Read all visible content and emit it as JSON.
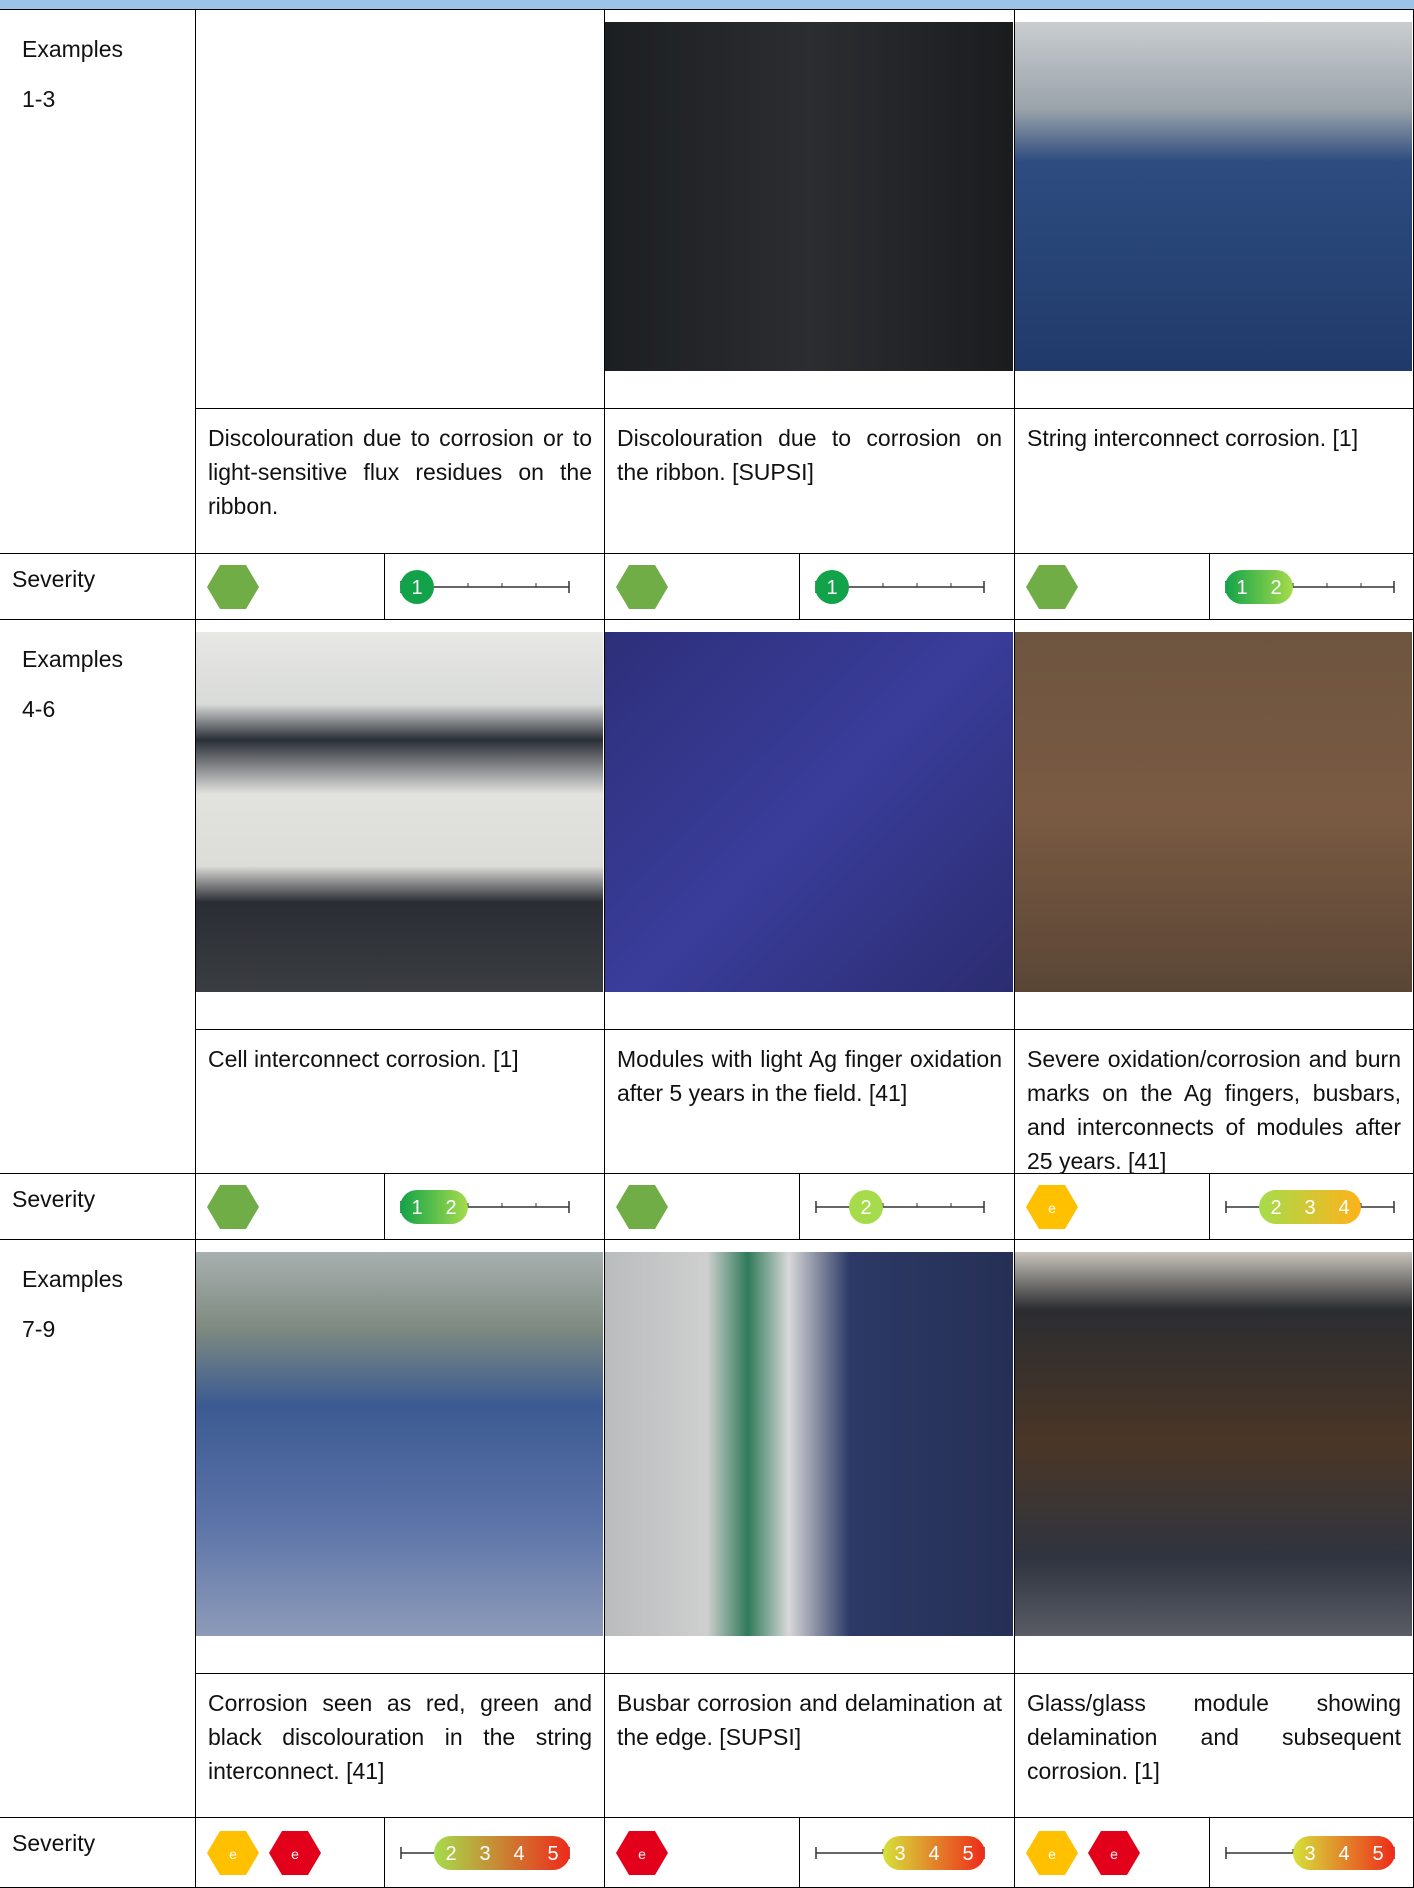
{
  "groups": [
    {
      "label": "Examples",
      "range": "1-3",
      "severity_label": "Severity",
      "examples": [
        {
          "caption": "Discolouration due to corrosion or to light-sensitive flux residues on the ribbon.",
          "severity": {
            "icons": [
              {
                "color": "#70ad47"
              }
            ],
            "scale": [
              1
            ]
          }
        },
        {
          "caption": "Discolouration due to corrosion on the ribbon. [SUPSI]",
          "severity": {
            "icons": [
              {
                "color": "#70ad47"
              }
            ],
            "scale": [
              1
            ]
          }
        },
        {
          "caption": "String interconnect corrosion. [1]",
          "severity": {
            "icons": [
              {
                "color": "#70ad47"
              }
            ],
            "scale": [
              1,
              2
            ]
          }
        }
      ]
    },
    {
      "label": "Examples",
      "range": "4-6",
      "severity_label": "Severity",
      "examples": [
        {
          "caption": "Cell interconnect corrosion. [1]",
          "severity": {
            "icons": [
              {
                "color": "#70ad47"
              }
            ],
            "scale": [
              1,
              2
            ]
          }
        },
        {
          "caption": "Modules with light Ag finger oxidation after 5 years in the field. [41]",
          "severity": {
            "icons": [
              {
                "color": "#70ad47"
              }
            ],
            "scale": [
              2
            ]
          }
        },
        {
          "caption": "Severe oxidation/corrosion and burn marks on the Ag fingers, busbars, and interconnects of modules after 25 years. [41]",
          "severity": {
            "icons": [
              {
                "color": "#ffc000",
                "label": "e"
              }
            ],
            "scale": [
              2,
              3,
              4
            ]
          }
        }
      ]
    },
    {
      "label": "Examples",
      "range": "7-9",
      "severity_label": "Severity",
      "examples": [
        {
          "caption": "Corrosion seen as red, green and black discolouration in the string interconnect. [41]",
          "severity": {
            "icons": [
              {
                "color": "#ffc000",
                "label": "e"
              },
              {
                "color": "#e3001b",
                "label": "e"
              }
            ],
            "scale": [
              2,
              3,
              4,
              5
            ]
          }
        },
        {
          "caption": "Busbar corrosion and delamination at the edge. [SUPSI]",
          "severity": {
            "icons": [
              {
                "color": "#e3001b",
                "label": "e"
              }
            ],
            "scale": [
              3,
              4,
              5
            ]
          }
        },
        {
          "caption": "Glass/glass module showing delamination and subsequent corrosion. [1]",
          "severity": {
            "icons": [
              {
                "color": "#ffc000",
                "label": "e"
              },
              {
                "color": "#e3001b",
                "label": "e"
              }
            ],
            "scale": [
              3,
              4,
              5
            ]
          }
        }
      ]
    }
  ]
}
